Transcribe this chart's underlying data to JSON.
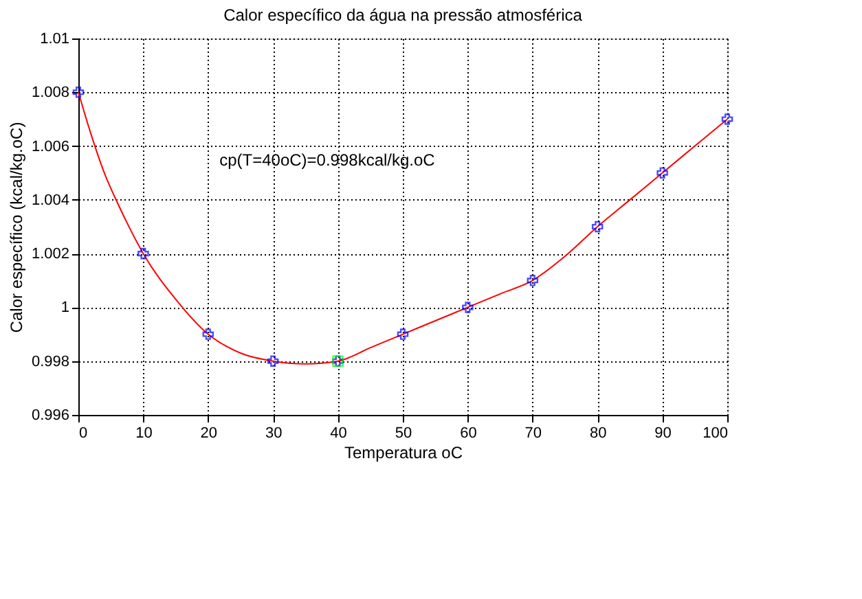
{
  "chart_data": {
    "type": "line",
    "title": "Calor específico da água na pressão atmosférica",
    "xlabel": "Temperatura oC",
    "ylabel": "Calor específico (kcal/kg.oC)",
    "series": [
      {
        "color": "#ff0000",
        "marker": "none",
        "x": [
          0,
          2,
          4,
          6,
          8,
          10,
          15,
          20,
          25,
          30,
          35,
          40,
          45,
          50,
          55,
          60,
          65,
          70,
          75,
          80,
          85,
          90,
          95,
          100
        ],
        "values": [
          1.008,
          1.0064,
          1.005,
          1.0039,
          1.0029,
          1.002,
          1.0003,
          0.999,
          0.9983,
          0.998,
          0.9979,
          0.998,
          0.9985,
          0.999,
          0.9995,
          1.0,
          1.0005,
          1.001,
          1.0019,
          1.003,
          1.004,
          1.005,
          1.006,
          1.007
        ]
      },
      {
        "type": "scatter",
        "color": "#0000ff",
        "marker": "cross",
        "x": [
          0,
          10,
          20,
          30,
          40,
          50,
          60,
          70,
          80,
          90,
          100
        ],
        "values": [
          1.008,
          1.002,
          0.999,
          0.998,
          0.998,
          0.999,
          1.0,
          1.001,
          1.003,
          1.005,
          1.007
        ]
      },
      {
        "type": "scatter",
        "color": "#00ff00",
        "marker": "square",
        "x": [
          40
        ],
        "values": [
          0.998
        ]
      }
    ],
    "xlim": [
      0,
      100
    ],
    "xticks": [
      0,
      10,
      20,
      30,
      40,
      50,
      60,
      70,
      80,
      90,
      100
    ],
    "ylim": [
      0.996,
      1.01
    ],
    "yticks": [
      0.996,
      0.998,
      1,
      1.002,
      1.004,
      1.006,
      1.008,
      1.01
    ],
    "grid": true,
    "annotations": [
      "cp(T=40oC)=0.998kcal/kg.oC"
    ]
  }
}
